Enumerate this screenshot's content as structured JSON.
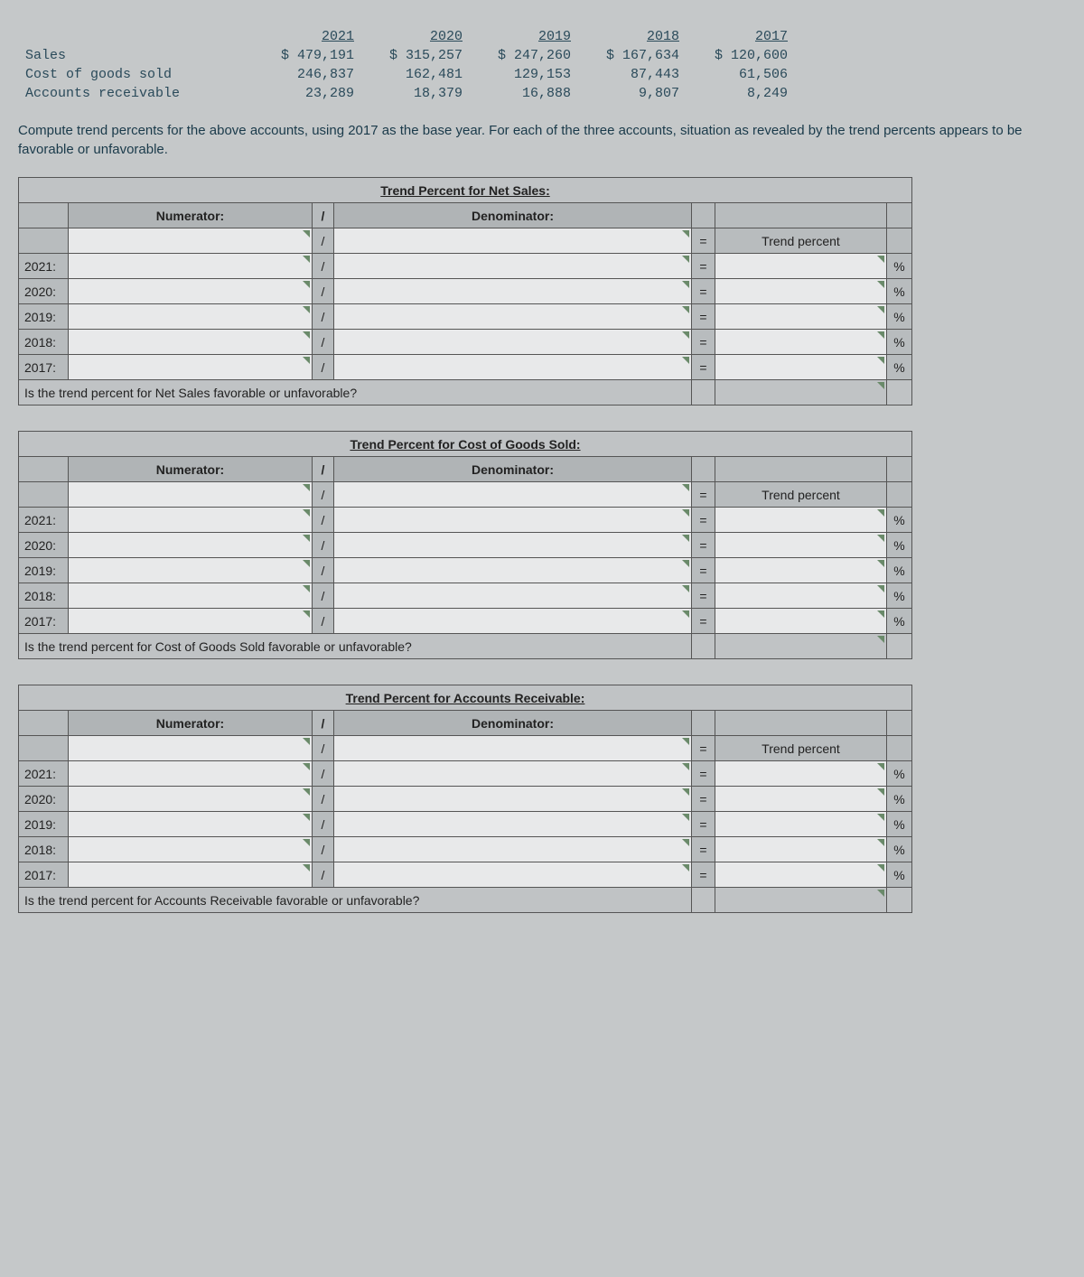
{
  "dataTable": {
    "years": [
      "2021",
      "2020",
      "2019",
      "2018",
      "2017"
    ],
    "rows": [
      {
        "label": "Sales",
        "values": [
          "$ 479,191",
          "$ 315,257",
          "$ 247,260",
          "$ 167,634",
          "$ 120,600"
        ]
      },
      {
        "label": "Cost of goods sold",
        "values": [
          "246,837",
          "162,481",
          "129,153",
          "87,443",
          "61,506"
        ]
      },
      {
        "label": "Accounts receivable",
        "values": [
          "23,289",
          "18,379",
          "16,888",
          "9,807",
          "8,249"
        ]
      }
    ]
  },
  "instructions": "Compute trend percents for the above accounts, using 2017 as the base year. For each of the three accounts, situation as revealed by the trend percents appears to be favorable or unfavorable.",
  "labels": {
    "numerator": "Numerator:",
    "denominator": "Denominator:",
    "slash": "/",
    "equals": "=",
    "trendPercent": "Trend percent",
    "percent": "%"
  },
  "sections": [
    {
      "title": "Trend Percent for Net Sales:",
      "question": "Is the trend percent for Net Sales favorable or unfavorable?"
    },
    {
      "title": "Trend Percent for Cost of Goods Sold:",
      "question": "Is the trend percent for Cost of Goods Sold favorable or unfavorable?"
    },
    {
      "title": "Trend Percent for Accounts Receivable:",
      "question": "Is the trend percent for Accounts Receivable favorable or unfavorable?"
    }
  ],
  "worksheetYears": [
    "2021:",
    "2020:",
    "2019:",
    "2018:",
    "2017:"
  ]
}
